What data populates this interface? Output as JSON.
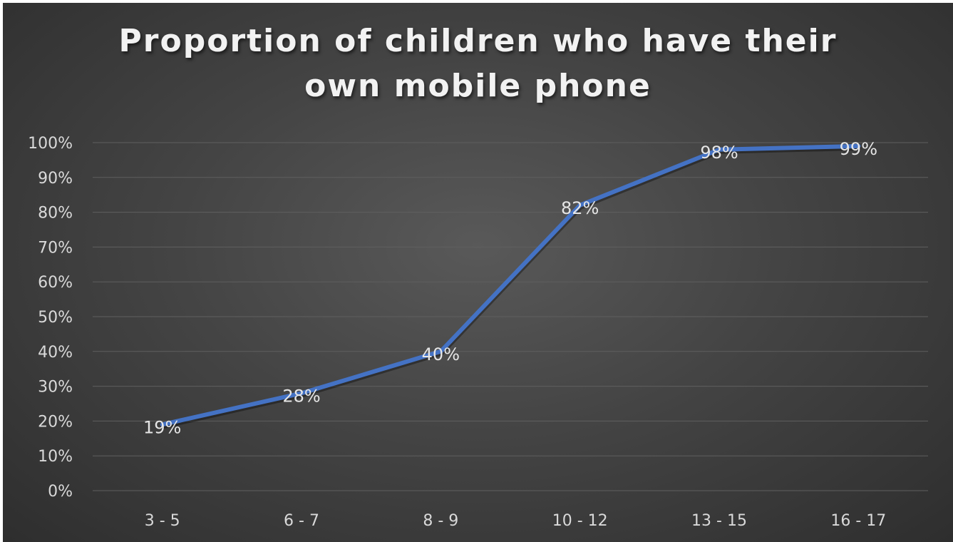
{
  "chart_data": {
    "type": "line",
    "title_lines": [
      "Proportion of children who have their",
      "own mobile phone"
    ],
    "categories": [
      "3 - 5",
      "6 - 7",
      "8 - 9",
      "10 - 12",
      "13 - 15",
      "16 - 17"
    ],
    "values": [
      19,
      28,
      40,
      82,
      98,
      99
    ],
    "data_labels": [
      "19%",
      "28%",
      "40%",
      "82%",
      "98%",
      "99%"
    ],
    "y_ticks": [
      "0%",
      "10%",
      "20%",
      "30%",
      "40%",
      "50%",
      "60%",
      "70%",
      "80%",
      "90%",
      "100%"
    ],
    "ylim": [
      0,
      100
    ],
    "grid": true,
    "legend": "none",
    "colors": {
      "line": "#4472c4",
      "grid": "#5f5f5f",
      "text": "#d9d9d9"
    }
  }
}
